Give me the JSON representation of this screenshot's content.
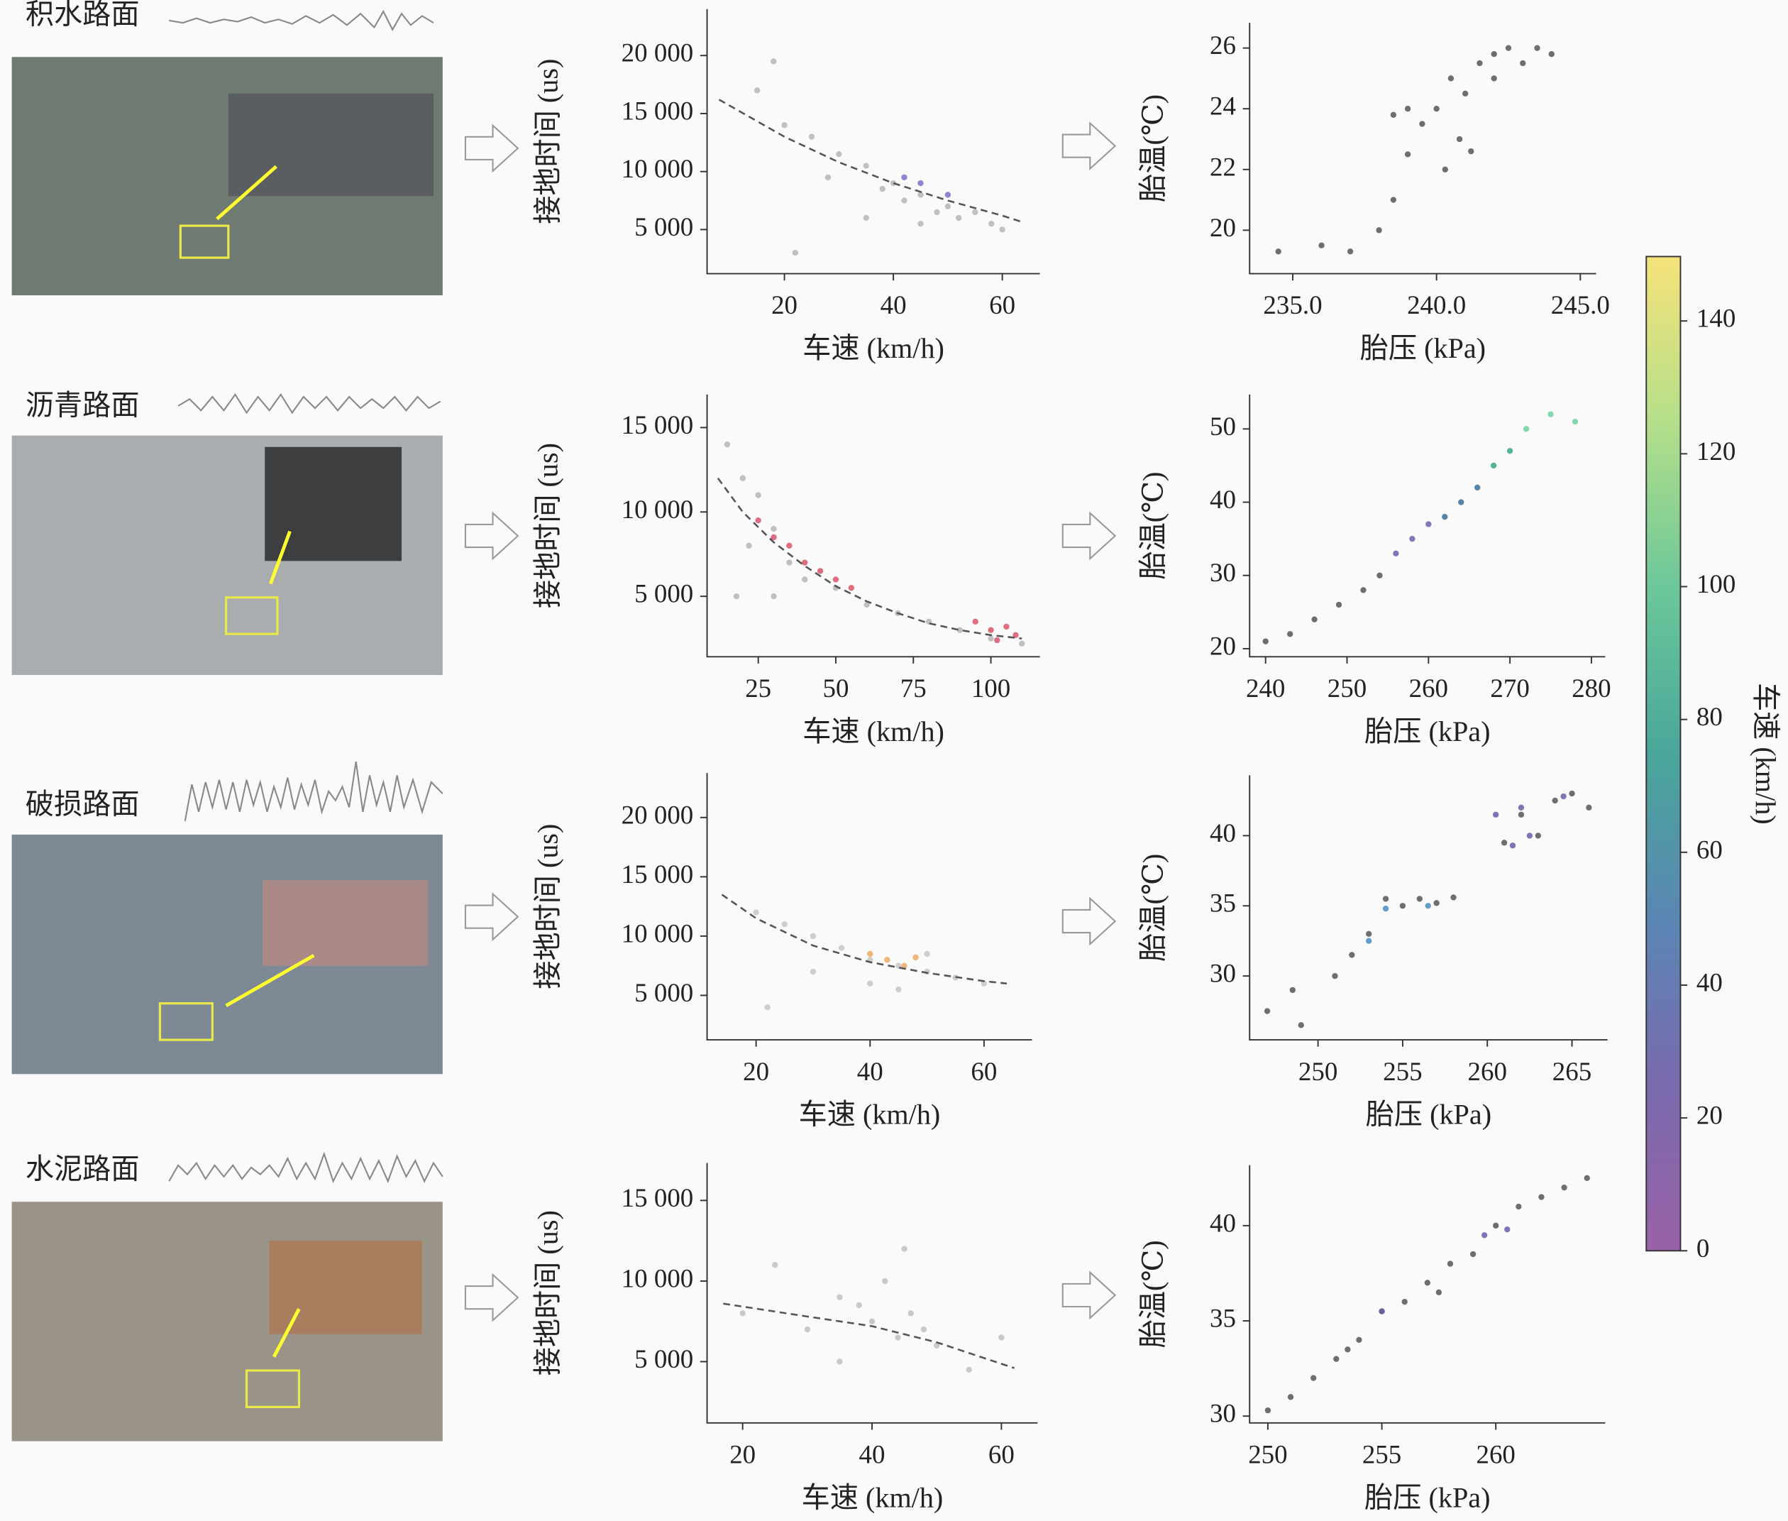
{
  "road_types": [
    "积水路面",
    "沥青路面",
    "破损路面",
    "水泥路面"
  ],
  "chart_data": [
    {
      "type": "scatter",
      "xlabel": "车速 (km/h)",
      "ylabel": "接地时间 (us)",
      "xlim": [
        5.8,
        66.9
      ],
      "ylim": [
        1200,
        24000
      ],
      "xticks": [
        20,
        40,
        60
      ],
      "yticks": [
        {
          "value": 5000,
          "label": "5 000"
        },
        {
          "value": 10000,
          "label": "10 000"
        },
        {
          "value": 15000,
          "label": "15 000"
        },
        {
          "value": 20000,
          "label": "20 000"
        }
      ],
      "series": [
        {
          "color": "#b5b5b5",
          "x": [
            18,
            15,
            20,
            25,
            30,
            28,
            35,
            38,
            40,
            42,
            45,
            48,
            50,
            52,
            55,
            58,
            60,
            35,
            22,
            45
          ],
          "values": [
            19500,
            17000,
            14000,
            13000,
            11500,
            9500,
            10500,
            8500,
            9000,
            7500,
            8000,
            6500,
            7000,
            6000,
            6500,
            5500,
            5000,
            6000,
            3000,
            5500
          ]
        },
        {
          "color": "#7b6fc4",
          "x": [
            42,
            45,
            50
          ],
          "values": [
            9500,
            9000,
            8000
          ]
        }
      ],
      "trend": {
        "x": [
          8,
          20,
          30,
          40,
          50,
          60,
          64
        ],
        "values": [
          16200,
          13000,
          10800,
          9000,
          7500,
          6200,
          5600
        ]
      }
    },
    {
      "type": "scatter",
      "xlabel": "胎压 (kPa)",
      "ylabel": "胎温(℃)",
      "xlim": [
        233.5,
        245.55
      ],
      "ylim": [
        18.57,
        26.83
      ],
      "xticks": [
        {
          "value": 235,
          "label": "235.0"
        },
        {
          "value": 240,
          "label": "240.0"
        },
        {
          "value": 245,
          "label": "245.0"
        }
      ],
      "yticks": [
        20,
        22,
        24,
        26
      ],
      "series": [
        {
          "color": "#555555",
          "x": [
            234.5,
            236,
            237,
            238,
            238.5,
            239,
            239.5,
            240,
            240.3,
            240.5,
            241,
            241.5,
            242,
            242.5,
            243,
            243.5,
            244,
            239,
            240.8,
            241.2,
            238.5,
            242
          ],
          "values": [
            19.3,
            19.5,
            19.3,
            20,
            21,
            22.5,
            23.5,
            24,
            22,
            25,
            24.5,
            25.5,
            25.8,
            26,
            25.5,
            26,
            25.8,
            24,
            23,
            22.6,
            23.8,
            25
          ]
        }
      ]
    },
    {
      "type": "scatter",
      "xlabel": "车速 (km/h)",
      "ylabel": "接地时间 (us)",
      "xlim": [
        8.5,
        115.8
      ],
      "ylim": [
        1419,
        16959
      ],
      "xticks": [
        25,
        50,
        75,
        100
      ],
      "yticks": [
        {
          "value": 5000,
          "label": "5 000"
        },
        {
          "value": 10000,
          "label": "10 000"
        },
        {
          "value": 15000,
          "label": "15 000"
        }
      ],
      "series": [
        {
          "color": "#b5b5b5",
          "x": [
            15,
            20,
            25,
            22,
            30,
            35,
            30,
            40,
            50,
            60,
            70,
            80,
            90,
            100,
            110,
            18
          ],
          "values": [
            14000,
            12000,
            11000,
            8000,
            9000,
            7000,
            5000,
            6000,
            5500,
            4500,
            4000,
            3500,
            3000,
            2500,
            2200,
            5000
          ]
        },
        {
          "color": "#d9536a",
          "x": [
            25,
            30,
            35,
            40,
            45,
            50,
            55,
            95,
            100,
            105,
            108,
            102
          ],
          "values": [
            9500,
            8500,
            8000,
            7000,
            6500,
            6000,
            5500,
            3500,
            3000,
            3200,
            2700,
            2400
          ]
        }
      ],
      "trend": {
        "x": [
          12,
          20,
          30,
          40,
          50,
          60,
          70,
          80,
          90,
          100,
          110
        ],
        "values": [
          12000,
          10000,
          8200,
          6800,
          5600,
          4700,
          4000,
          3400,
          3000,
          2700,
          2500
        ]
      }
    },
    {
      "type": "scatter",
      "xlabel": "胎压 (kPa)",
      "ylabel": "胎温(℃)",
      "xlim": [
        238.04,
        281.7
      ],
      "ylim": [
        18.9,
        54.7
      ],
      "xticks": [
        240,
        250,
        260,
        270,
        280
      ],
      "yticks": [
        20,
        30,
        40,
        50
      ],
      "series": [
        {
          "color": "#555555",
          "x": [
            240,
            243,
            246,
            249,
            252,
            254
          ],
          "values": [
            21,
            22,
            24,
            26,
            28,
            30
          ]
        },
        {
          "color": "#6f5fa8",
          "x": [
            256,
            258,
            260
          ],
          "values": [
            33,
            35,
            37
          ]
        },
        {
          "color": "#3a6f9a",
          "x": [
            262,
            264,
            266
          ],
          "values": [
            38,
            40,
            42
          ]
        },
        {
          "color": "#3aa58a",
          "x": [
            268,
            270
          ],
          "values": [
            45,
            47
          ]
        },
        {
          "color": "#6fd0a0",
          "x": [
            272,
            275,
            278
          ],
          "values": [
            50,
            52,
            51
          ]
        }
      ]
    },
    {
      "type": "scatter",
      "xlabel": "车速 (km/h)",
      "ylabel": "接地时间 (us)",
      "xlim": [
        11.4,
        68.4
      ],
      "ylim": [
        1250,
        23750
      ],
      "xticks": [
        20,
        40,
        60
      ],
      "yticks": [
        {
          "value": 5000,
          "label": "5 000"
        },
        {
          "value": 10000,
          "label": "10 000"
        },
        {
          "value": 15000,
          "label": "15 000"
        },
        {
          "value": 20000,
          "label": "20 000"
        }
      ],
      "series": [
        {
          "color": "#c5c5c5",
          "x": [
            20,
            25,
            30,
            35,
            40,
            45,
            50,
            55,
            60,
            40,
            45,
            30,
            22,
            50
          ],
          "values": [
            12000,
            11000,
            10000,
            9000,
            8000,
            7500,
            7000,
            6500,
            6000,
            6000,
            5500,
            7000,
            4000,
            8500
          ]
        },
        {
          "color": "#f0a860",
          "x": [
            40,
            43,
            46,
            48
          ],
          "values": [
            8500,
            8000,
            7500,
            8200
          ]
        }
      ],
      "trend": {
        "x": [
          14,
          20,
          30,
          40,
          50,
          60,
          64
        ],
        "values": [
          13500,
          11500,
          9200,
          7800,
          6900,
          6200,
          6000
        ]
      }
    },
    {
      "type": "scatter",
      "xlabel": "胎压 (kPa)",
      "ylabel": "胎温(℃)",
      "xlim": [
        245.96,
        267.1
      ],
      "ylim": [
        25.45,
        44.3
      ],
      "xticks": [
        250,
        255,
        260,
        265
      ],
      "yticks": [
        30,
        35,
        40
      ],
      "series": [
        {
          "color": "#555555",
          "x": [
            247,
            248.5,
            249,
            251,
            252,
            253,
            254,
            255,
            256,
            257,
            258,
            261,
            262,
            263,
            264,
            265,
            266
          ],
          "values": [
            27.5,
            29,
            26.5,
            30,
            31.5,
            33,
            35.5,
            35,
            35.5,
            35.2,
            35.6,
            39.5,
            41.5,
            40,
            42.5,
            43,
            42
          ]
        },
        {
          "color": "#6a5ca8",
          "x": [
            260.5,
            262,
            264.5,
            261.5,
            262.5
          ],
          "values": [
            41.5,
            42,
            42.8,
            39.3,
            40
          ]
        },
        {
          "color": "#4a8cc0",
          "x": [
            253,
            254,
            256.5
          ],
          "values": [
            32.5,
            34.8,
            35
          ]
        }
      ]
    },
    {
      "type": "scatter",
      "xlabel": "车速 (km/h)",
      "ylabel": "接地时间 (us)",
      "xlim": [
        14.5,
        65.6
      ],
      "ylim": [
        1197,
        17324
      ],
      "xticks": [
        20,
        40,
        60
      ],
      "yticks": [
        {
          "value": 5000,
          "label": "5 000"
        },
        {
          "value": 10000,
          "label": "10 000"
        },
        {
          "value": 15000,
          "label": "15 000"
        }
      ],
      "series": [
        {
          "color": "#c0c0c0",
          "x": [
            20,
            30,
            35,
            38,
            40,
            42,
            44,
            46,
            48,
            50,
            35,
            25,
            55,
            45,
            60
          ],
          "values": [
            8000,
            7000,
            9000,
            8500,
            7500,
            10000,
            6500,
            8000,
            7000,
            6000,
            5000,
            11000,
            4500,
            12000,
            6500
          ]
        }
      ],
      "trend": {
        "x": [
          17,
          30,
          40,
          50,
          62
        ],
        "values": [
          8600,
          7800,
          7200,
          6200,
          4600
        ]
      }
    },
    {
      "type": "scatter",
      "xlabel": "胎压 (kPa)",
      "ylabel": "胎温(℃)",
      "xlim": [
        249.2,
        264.8
      ],
      "ylim": [
        29.64,
        43.17
      ],
      "xticks": [
        250,
        255,
        260
      ],
      "yticks": [
        30,
        35,
        40
      ],
      "series": [
        {
          "color": "#555555",
          "x": [
            250,
            251,
            252,
            253,
            254,
            255,
            256,
            257,
            258,
            259,
            260,
            261,
            262,
            263,
            264,
            253.5,
            257.5
          ],
          "values": [
            30.3,
            31,
            32,
            33,
            34,
            35.5,
            36,
            37,
            38,
            38.5,
            40,
            41,
            41.5,
            42,
            42.5,
            33.5,
            36.5
          ]
        },
        {
          "color": "#6a5ca8",
          "x": [
            259.5,
            260.5,
            255
          ],
          "values": [
            39.5,
            39.8,
            35.5
          ]
        }
      ]
    },
    {
      "type": "colorbar",
      "label": "车速 (km/h)",
      "lim": [
        0,
        149.7
      ],
      "ticks": [
        0,
        20,
        40,
        60,
        80,
        100,
        120,
        140
      ],
      "colors": [
        "#9a62a8",
        "#7a6aae",
        "#5a86b4",
        "#4aa69a",
        "#6cc79a",
        "#b4df8a",
        "#f6e27a"
      ]
    }
  ]
}
